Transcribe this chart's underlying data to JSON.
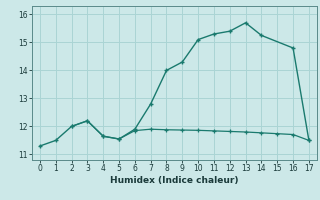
{
  "xlabel": "Humidex (Indice chaleur)",
  "background_color": "#cce8e8",
  "grid_color": "#aad4d4",
  "line_color": "#1a7a6e",
  "xlim": [
    -0.5,
    17.5
  ],
  "ylim": [
    10.8,
    16.3
  ],
  "x_ticks": [
    0,
    1,
    2,
    3,
    4,
    5,
    6,
    7,
    8,
    9,
    10,
    11,
    12,
    13,
    14,
    15,
    16,
    17
  ],
  "y_ticks": [
    11,
    12,
    13,
    14,
    15,
    16
  ],
  "line1_x": [
    0,
    1,
    2,
    3,
    4,
    5,
    6,
    7,
    8,
    9,
    10,
    11,
    12,
    13,
    14,
    16,
    17
  ],
  "line1_y": [
    11.3,
    11.5,
    12.0,
    12.2,
    11.65,
    11.55,
    11.9,
    12.8,
    14.0,
    14.3,
    15.1,
    15.3,
    15.4,
    15.7,
    15.25,
    14.8,
    11.5
  ],
  "line2_x": [
    2,
    3,
    4,
    5,
    6,
    7,
    8,
    9,
    10,
    11,
    12,
    13,
    14,
    15,
    16,
    17
  ],
  "line2_y": [
    12.0,
    12.2,
    11.65,
    11.55,
    11.85,
    11.9,
    11.88,
    11.87,
    11.86,
    11.84,
    11.82,
    11.8,
    11.77,
    11.74,
    11.71,
    11.5
  ]
}
